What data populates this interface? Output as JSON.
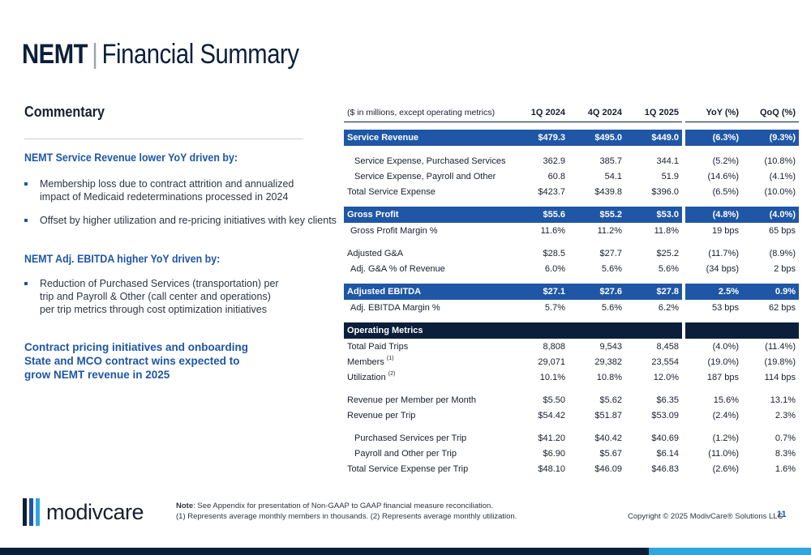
{
  "header": {
    "title_bold": "NEMT",
    "separator": "|",
    "title_light": "Financial Summary"
  },
  "commentary": {
    "title": "Commentary",
    "revenue_heading": "NEMT Service Revenue lower YoY driven by:",
    "revenue_bullets": [
      "Membership loss due to contract attrition and annualized impact of Medicaid redeterminations processed in 2024",
      "Offset by higher utilization and re-pricing initiatives with key clients"
    ],
    "ebitda_heading": "NEMT Adj. EBITDA higher YoY driven by:",
    "ebitda_bullets": [
      "Reduction of Purchased Services (transportation) per trip and Payroll & Other (call center and operations) per trip metrics through cost optimization initiatives"
    ],
    "callout": "Contract pricing initiatives and onboarding State and MCO contract wins expected to grow NEMT revenue in 2025"
  },
  "table": {
    "units_label": "($ in millions, except operating metrics)",
    "columns": [
      "1Q 2024",
      "4Q 2024",
      "1Q 2025",
      "YoY (%)",
      "QoQ (%)"
    ],
    "rows": {
      "service_revenue": {
        "label": "Service Revenue",
        "values": [
          "$479.3",
          "$495.0",
          "$449.0",
          "(6.3%)",
          "(9.3%)"
        ]
      },
      "exp_purchased": {
        "label": "Service Expense, Purchased Services",
        "values": [
          "362.9",
          "385.7",
          "344.1",
          "(5.2%)",
          "(10.8%)"
        ]
      },
      "exp_payroll": {
        "label": "Service Expense, Payroll and Other",
        "values": [
          "60.8",
          "54.1",
          "51.9",
          "(14.6%)",
          "(4.1%)"
        ]
      },
      "total_service_expense": {
        "label": "Total Service Expense",
        "values": [
          "$423.7",
          "$439.8",
          "$396.0",
          "(6.5%)",
          "(10.0%)"
        ]
      },
      "gross_profit": {
        "label": "Gross Profit",
        "values": [
          "$55.6",
          "$55.2",
          "$53.0",
          "(4.8%)",
          "(4.0%)"
        ]
      },
      "gross_margin": {
        "label": "Gross Profit Margin %",
        "values": [
          "11.6%",
          "11.2%",
          "11.8%",
          "19 bps",
          "65 bps"
        ]
      },
      "adj_ga": {
        "label": "Adjusted G&A",
        "values": [
          "$28.5",
          "$27.7",
          "$25.2",
          "(11.7%)",
          "(8.9%)"
        ]
      },
      "adj_ga_pct": {
        "label": "Adj. G&A % of Revenue",
        "values": [
          "6.0%",
          "5.6%",
          "5.6%",
          "(34 bps)",
          "2 bps"
        ]
      },
      "adj_ebitda": {
        "label": "Adjusted EBITDA",
        "values": [
          "$27.1",
          "$27.6",
          "$27.8",
          "2.5%",
          "0.9%"
        ]
      },
      "ebitda_margin": {
        "label": "Adj. EBITDA Margin %",
        "values": [
          "5.7%",
          "5.6%",
          "6.2%",
          "53 bps",
          "62 bps"
        ]
      },
      "operating_metrics": {
        "label": "Operating Metrics"
      },
      "total_paid_trips": {
        "label": "Total Paid Trips",
        "values": [
          "8,808",
          "9,543",
          "8,458",
          "(4.0%)",
          "(11.4%)"
        ]
      },
      "members": {
        "label": "Members",
        "sup": "(1)",
        "values": [
          "29,071",
          "29,382",
          "23,554",
          "(19.0%)",
          "(19.8%)"
        ]
      },
      "utilization": {
        "label": "Utilization",
        "sup": "(2)",
        "values": [
          "10.1%",
          "10.8%",
          "12.0%",
          "187 bps",
          "114 bps"
        ]
      },
      "rev_per_member": {
        "label": "Revenue per Member per Month",
        "values": [
          "$5.50",
          "$5.62",
          "$6.35",
          "15.6%",
          "13.1%"
        ]
      },
      "rev_per_trip": {
        "label": "Revenue per Trip",
        "values": [
          "$54.42",
          "$51.87",
          "$53.09",
          "(2.4%)",
          "2.3%"
        ]
      },
      "purchased_per_trip": {
        "label": "Purchased Services per Trip",
        "values": [
          "$41.20",
          "$40.42",
          "$40.69",
          "(1.2%)",
          "0.7%"
        ]
      },
      "payroll_per_trip": {
        "label": "Payroll and Other per Trip",
        "values": [
          "$6.90",
          "$5.67",
          "$6.14",
          "(11.0%)",
          "8.3%"
        ]
      },
      "total_exp_per_trip": {
        "label": "Total Service Expense per Trip",
        "values": [
          "$48.10",
          "$46.09",
          "$46.83",
          "(2.6%)",
          "1.6%"
        ]
      }
    }
  },
  "footer": {
    "logo_text": "modivcare",
    "logo_bar_colors": [
      "#0b1f3a",
      "#1f56a6",
      "#2fa6de"
    ],
    "note_label": "Note",
    "note_line1": ": See Appendix for presentation of Non-GAAP to GAAP financial measure reconciliation.",
    "note_line2": "(1) Represents average monthly members in thousands. (2) Represents average monthly utilization.",
    "copyright": "Copyright © 2025 ModivCare® Solutions LLC",
    "page_number": "11"
  },
  "colors": {
    "navy": "#0b1f3a",
    "blue": "#1f56a6",
    "light_blue": "#2fa6de"
  }
}
